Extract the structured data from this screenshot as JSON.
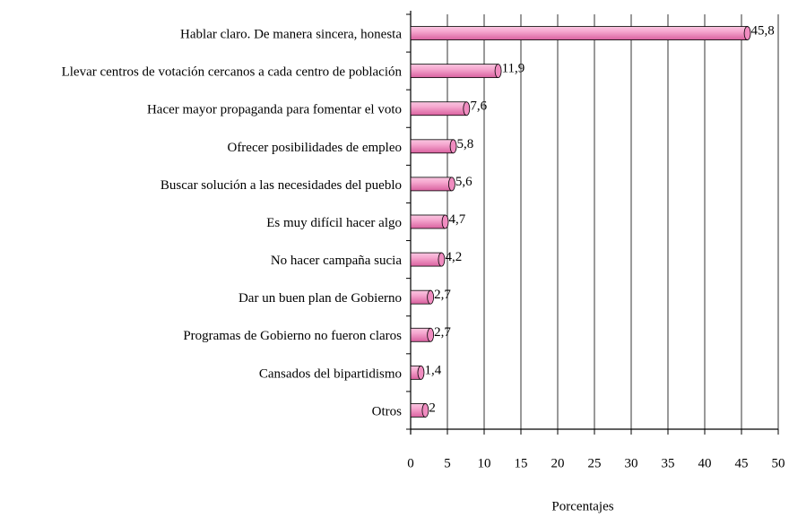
{
  "chart_data": {
    "type": "bar",
    "orientation": "horizontal",
    "categories": [
      "Hablar claro. De manera sincera, honesta",
      "Llevar centros de votación cercanos a cada centro de población",
      "Hacer mayor propaganda para fomentar el voto",
      "Ofrecer posibilidades de empleo",
      "Buscar solución a las necesidades del pueblo",
      "Es muy difícil hacer algo",
      "No hacer campaña sucia",
      "Dar un buen plan de Gobierno",
      "Programas de Gobierno no fueron claros",
      "Cansados del bipartidismo",
      "Otros"
    ],
    "values": [
      45.8,
      11.9,
      7.6,
      5.8,
      5.6,
      4.7,
      4.2,
      2.7,
      2.7,
      1.4,
      2
    ],
    "value_labels": [
      "45,8",
      "11,9",
      "7,6",
      "5,8",
      "5,6",
      "4,7",
      "4,2",
      "2,7",
      "2,7",
      "1,4",
      "2"
    ],
    "color": "#f08cc0",
    "x_label": "Porcentajes",
    "xlim": [
      0,
      50
    ],
    "xticks": [
      0,
      5,
      10,
      15,
      20,
      25,
      30,
      35,
      40,
      45,
      50
    ],
    "grid": true
  }
}
